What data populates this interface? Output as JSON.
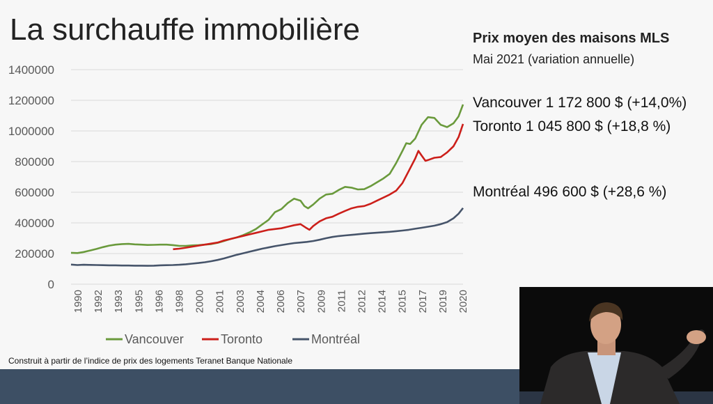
{
  "slide": {
    "title": "La surchauffe immobilière",
    "source_note": "Construit à partir de l’indice de prix des logements Teranet Banque Nationale"
  },
  "panel": {
    "heading": "Prix moyen des maisons MLS",
    "subheading": "Mai 2021 (variation annuelle)",
    "stats": [
      {
        "text": "Vancouver 1 172 800 $ (+14,0%)"
      },
      {
        "text": "Toronto 1 045 800 $ (+18,8 %)"
      },
      {
        "text": "Montréal 496 600 $ (+28,6 %)"
      }
    ]
  },
  "colors": {
    "vancouver": "#6a9a3c",
    "toronto": "#cc1f1a",
    "montreal": "#46546a",
    "grid": "#d9d9d9",
    "axis_text": "#595959",
    "footer": "#3d4f64"
  },
  "chart_data": {
    "type": "line",
    "xlabel": "",
    "ylabel": "",
    "ylim": [
      0,
      1400000
    ],
    "yticks": [
      "0",
      "200000",
      "400000",
      "600000",
      "800000",
      "1000000",
      "1200000",
      "1400000"
    ],
    "xlim": [
      1990,
      2020.75
    ],
    "xticks": [
      "1990",
      "1992",
      "1993",
      "1995",
      "1996",
      "1998",
      "2000",
      "2001",
      "2003",
      "2004",
      "2006",
      "2007",
      "2009",
      "2011",
      "2012",
      "2014",
      "2015",
      "2017",
      "2019",
      "2020"
    ],
    "grid": true,
    "legend": "bottom",
    "series": [
      {
        "name": "Vancouver",
        "color": "#6a9a3c",
        "points": [
          [
            1990,
            205000
          ],
          [
            1990.5,
            203000
          ],
          [
            1991,
            210000
          ],
          [
            1991.5,
            220000
          ],
          [
            1992,
            230000
          ],
          [
            1992.5,
            242000
          ],
          [
            1993,
            252000
          ],
          [
            1993.5,
            258000
          ],
          [
            1994,
            262000
          ],
          [
            1994.5,
            263000
          ],
          [
            1995,
            260000
          ],
          [
            1995.5,
            258000
          ],
          [
            1996,
            256000
          ],
          [
            1996.5,
            257000
          ],
          [
            1997,
            258000
          ],
          [
            1997.5,
            258000
          ],
          [
            1998,
            255000
          ],
          [
            1998.5,
            250000
          ],
          [
            1999,
            250000
          ],
          [
            1999.5,
            253000
          ],
          [
            2000,
            255000
          ],
          [
            2000.5,
            258000
          ],
          [
            2001,
            262000
          ],
          [
            2001.5,
            270000
          ],
          [
            2002,
            282000
          ],
          [
            2002.5,
            295000
          ],
          [
            2003,
            305000
          ],
          [
            2003.5,
            320000
          ],
          [
            2004,
            338000
          ],
          [
            2004.5,
            360000
          ],
          [
            2005,
            390000
          ],
          [
            2005.5,
            420000
          ],
          [
            2006,
            470000
          ],
          [
            2006.5,
            490000
          ],
          [
            2007,
            530000
          ],
          [
            2007.5,
            558000
          ],
          [
            2008,
            545000
          ],
          [
            2008.3,
            510000
          ],
          [
            2008.6,
            495000
          ],
          [
            2009,
            520000
          ],
          [
            2009.5,
            558000
          ],
          [
            2010,
            585000
          ],
          [
            2010.5,
            590000
          ],
          [
            2011,
            615000
          ],
          [
            2011.5,
            635000
          ],
          [
            2012,
            630000
          ],
          [
            2012.5,
            618000
          ],
          [
            2013,
            620000
          ],
          [
            2013.5,
            640000
          ],
          [
            2014,
            665000
          ],
          [
            2014.5,
            690000
          ],
          [
            2015,
            720000
          ],
          [
            2015.5,
            790000
          ],
          [
            2016,
            870000
          ],
          [
            2016.3,
            920000
          ],
          [
            2016.6,
            915000
          ],
          [
            2017,
            950000
          ],
          [
            2017.5,
            1040000
          ],
          [
            2018,
            1090000
          ],
          [
            2018.5,
            1085000
          ],
          [
            2019,
            1040000
          ],
          [
            2019.5,
            1025000
          ],
          [
            2020,
            1050000
          ],
          [
            2020.4,
            1095000
          ],
          [
            2020.75,
            1172800
          ]
        ]
      },
      {
        "name": "Toronto",
        "color": "#cc1f1a",
        "points": [
          [
            1998,
            228000
          ],
          [
            1998.5,
            232000
          ],
          [
            1999,
            238000
          ],
          [
            1999.5,
            245000
          ],
          [
            2000,
            252000
          ],
          [
            2000.5,
            258000
          ],
          [
            2001,
            265000
          ],
          [
            2001.5,
            272000
          ],
          [
            2002,
            285000
          ],
          [
            2002.5,
            295000
          ],
          [
            2003,
            305000
          ],
          [
            2003.5,
            315000
          ],
          [
            2004,
            325000
          ],
          [
            2004.5,
            335000
          ],
          [
            2005,
            345000
          ],
          [
            2005.5,
            355000
          ],
          [
            2006,
            360000
          ],
          [
            2006.5,
            365000
          ],
          [
            2007,
            375000
          ],
          [
            2007.5,
            385000
          ],
          [
            2008,
            392000
          ],
          [
            2008.4,
            370000
          ],
          [
            2008.7,
            355000
          ],
          [
            2009,
            380000
          ],
          [
            2009.5,
            410000
          ],
          [
            2010,
            430000
          ],
          [
            2010.5,
            440000
          ],
          [
            2011,
            460000
          ],
          [
            2011.5,
            478000
          ],
          [
            2012,
            495000
          ],
          [
            2012.5,
            505000
          ],
          [
            2013,
            510000
          ],
          [
            2013.5,
            525000
          ],
          [
            2014,
            545000
          ],
          [
            2014.5,
            565000
          ],
          [
            2015,
            585000
          ],
          [
            2015.5,
            610000
          ],
          [
            2016,
            660000
          ],
          [
            2016.5,
            740000
          ],
          [
            2017,
            820000
          ],
          [
            2017.25,
            870000
          ],
          [
            2017.5,
            840000
          ],
          [
            2017.8,
            805000
          ],
          [
            2018,
            810000
          ],
          [
            2018.5,
            825000
          ],
          [
            2019,
            830000
          ],
          [
            2019.5,
            860000
          ],
          [
            2020,
            900000
          ],
          [
            2020.4,
            960000
          ],
          [
            2020.75,
            1045800
          ]
        ]
      },
      {
        "name": "Montréal",
        "color": "#46546a",
        "points": [
          [
            1990,
            128000
          ],
          [
            1990.5,
            125000
          ],
          [
            1991,
            127000
          ],
          [
            1991.5,
            126000
          ],
          [
            1992,
            125000
          ],
          [
            1992.5,
            124000
          ],
          [
            1993,
            123000
          ],
          [
            1993.5,
            123000
          ],
          [
            1994,
            122000
          ],
          [
            1994.5,
            122000
          ],
          [
            1995,
            121000
          ],
          [
            1995.5,
            121000
          ],
          [
            1996,
            120000
          ],
          [
            1996.5,
            121000
          ],
          [
            1997,
            123000
          ],
          [
            1997.5,
            124000
          ],
          [
            1998,
            125000
          ],
          [
            1998.5,
            127000
          ],
          [
            1999,
            130000
          ],
          [
            1999.5,
            134000
          ],
          [
            2000,
            138000
          ],
          [
            2000.5,
            143000
          ],
          [
            2001,
            150000
          ],
          [
            2001.5,
            158000
          ],
          [
            2002,
            168000
          ],
          [
            2002.5,
            180000
          ],
          [
            2003,
            192000
          ],
          [
            2003.5,
            202000
          ],
          [
            2004,
            212000
          ],
          [
            2004.5,
            222000
          ],
          [
            2005,
            232000
          ],
          [
            2005.5,
            240000
          ],
          [
            2006,
            248000
          ],
          [
            2006.5,
            255000
          ],
          [
            2007,
            262000
          ],
          [
            2007.5,
            268000
          ],
          [
            2008,
            272000
          ],
          [
            2008.5,
            276000
          ],
          [
            2009,
            282000
          ],
          [
            2009.5,
            290000
          ],
          [
            2010,
            300000
          ],
          [
            2010.5,
            308000
          ],
          [
            2011,
            314000
          ],
          [
            2011.5,
            318000
          ],
          [
            2012,
            322000
          ],
          [
            2012.5,
            326000
          ],
          [
            2013,
            330000
          ],
          [
            2013.5,
            333000
          ],
          [
            2014,
            336000
          ],
          [
            2014.5,
            339000
          ],
          [
            2015,
            342000
          ],
          [
            2015.5,
            346000
          ],
          [
            2016,
            350000
          ],
          [
            2016.5,
            355000
          ],
          [
            2017,
            362000
          ],
          [
            2017.5,
            368000
          ],
          [
            2018,
            375000
          ],
          [
            2018.5,
            382000
          ],
          [
            2019,
            392000
          ],
          [
            2019.5,
            405000
          ],
          [
            2020,
            430000
          ],
          [
            2020.4,
            460000
          ],
          [
            2020.75,
            496600
          ]
        ]
      }
    ]
  }
}
